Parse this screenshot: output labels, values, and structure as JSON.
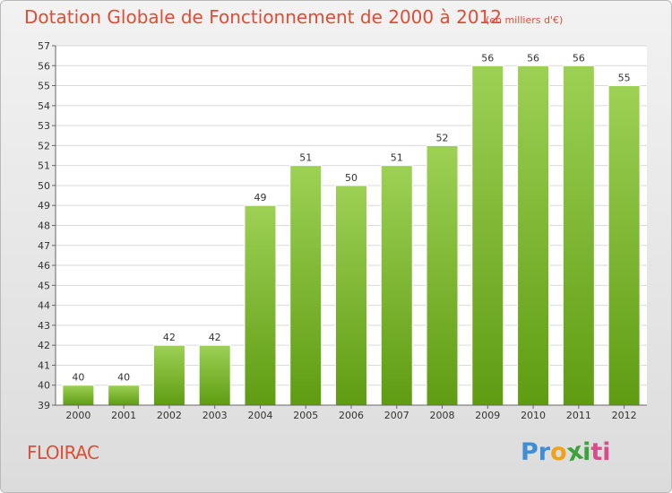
{
  "header": {
    "title": "Dotation Globale de Fonctionnement de 2000 à 2012",
    "unit": "(en milliers d'€)"
  },
  "footer": {
    "town": "FLOIRAC",
    "logo": {
      "letters": [
        "P",
        "r",
        "o",
        "x",
        "i",
        "t",
        "i"
      ],
      "colors": [
        "#3d8ed6",
        "#3d8ed6",
        "#f0a21b",
        "#3aa339",
        "#3aa339",
        "#d64d8a",
        "#d64d8a"
      ]
    }
  },
  "colors": {
    "title": "#dd4e36",
    "bar_light": "#9dd155",
    "bar_dark": "#5f9c12",
    "grid": "#d9d9d9"
  },
  "chart_data": {
    "type": "bar",
    "title": "Dotation Globale de Fonctionnement de 2000 à 2012",
    "subtitle": "(en milliers d'€)",
    "xlabel": "",
    "ylabel": "",
    "ylim": [
      39,
      57
    ],
    "yticks": [
      39,
      40,
      41,
      42,
      43,
      44,
      45,
      46,
      47,
      48,
      49,
      50,
      51,
      52,
      53,
      54,
      55,
      56,
      57
    ],
    "grid": true,
    "categories": [
      "2000",
      "2001",
      "2002",
      "2003",
      "2004",
      "2005",
      "2006",
      "2007",
      "2008",
      "2009",
      "2010",
      "2011",
      "2012"
    ],
    "values": [
      40,
      40,
      42,
      42,
      49,
      51,
      50,
      51,
      52,
      56,
      56,
      56,
      55
    ]
  }
}
